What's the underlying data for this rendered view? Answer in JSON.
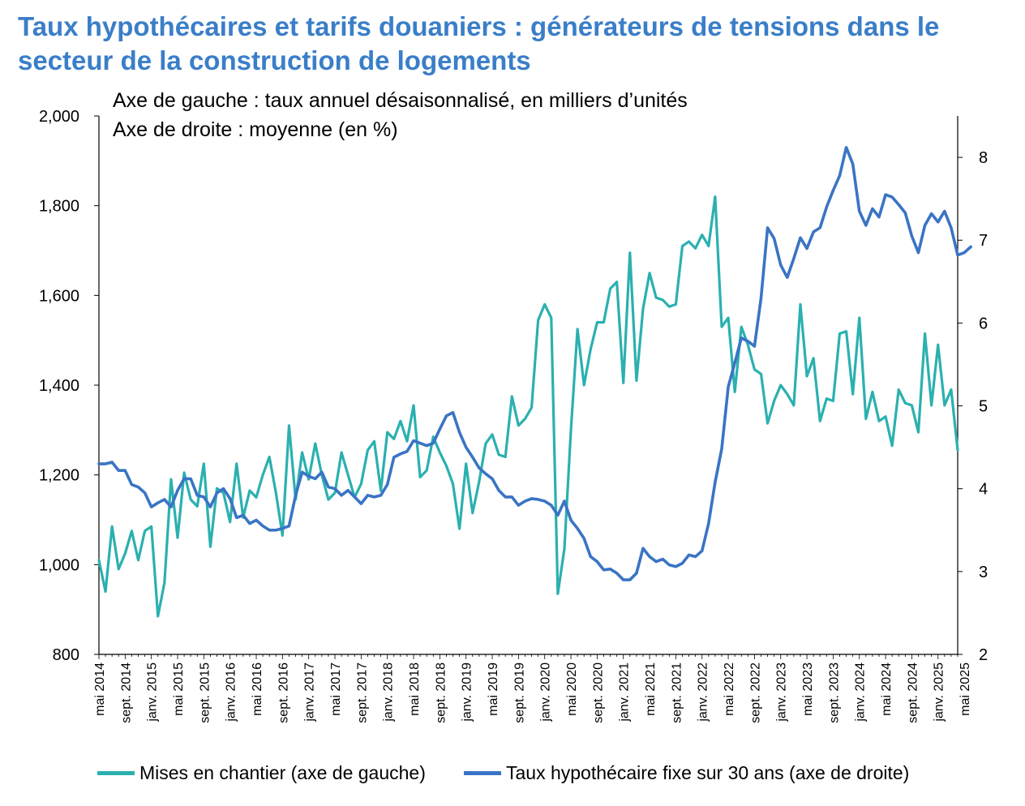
{
  "title": "Taux hypothécaires et tarifs douaniers : générateurs de tensions dans le secteur de la construction de logements",
  "notes": {
    "left_axis": "Axe de gauche : taux annuel désaisonnalisé, en milliers d’unités",
    "right_axis": "Axe de droite : moyenne (en %)"
  },
  "legend": {
    "series1": "Mises en chantier (axe de gauche)",
    "series2": "Taux hypothécaire fixe sur 30 ans (axe de droite)"
  },
  "colors": {
    "title": "#3a7ec8",
    "series1": "#2bb0b0",
    "series2": "#3a74c4",
    "axis": "#000000"
  },
  "chart_data": {
    "type": "line",
    "start": "2014-05",
    "y_left_ticks": [
      "800",
      "1,000",
      "1,200",
      "1,400",
      "1,600",
      "1,800",
      "2,000"
    ],
    "y_left_range": [
      800,
      2000
    ],
    "y_right_ticks": [
      "2",
      "3",
      "4",
      "5",
      "6",
      "7",
      "8"
    ],
    "y_right_range": [
      2,
      8.5
    ],
    "x_ticks": [
      "mai 2014",
      "sept. 2014",
      "janv. 2015",
      "mai 2015",
      "sept. 2015",
      "janv. 2016",
      "mai 2016",
      "sept. 2016",
      "janv. 2017",
      "mai 2017",
      "sept. 2017",
      "janv. 2018",
      "mai 2018",
      "sept. 2018",
      "janv. 2019",
      "mai 2019",
      "sept. 2019",
      "janv. 2020",
      "mai 2020",
      "sept. 2020",
      "janv. 2021",
      "mai 2021",
      "sept. 2021",
      "janv. 2022",
      "mai 2022",
      "sept. 2022",
      "janv. 2023",
      "mai 2023",
      "sept. 2023",
      "janv. 2024",
      "mai 2024",
      "sept. 2024",
      "janv. 2025",
      "mai 2025"
    ],
    "series": [
      {
        "name": "Mises en chantier (axe de gauche)",
        "axis": "left",
        "values": [
          1010,
          940,
          1085,
          990,
          1025,
          1075,
          1010,
          1075,
          1085,
          885,
          960,
          1190,
          1060,
          1205,
          1145,
          1130,
          1225,
          1040,
          1170,
          1160,
          1095,
          1225,
          1105,
          1165,
          1150,
          1200,
          1240,
          1160,
          1065,
          1310,
          1145,
          1250,
          1190,
          1270,
          1200,
          1145,
          1160,
          1250,
          1200,
          1150,
          1180,
          1255,
          1275,
          1165,
          1295,
          1280,
          1320,
          1275,
          1355,
          1195,
          1210,
          1285,
          1250,
          1220,
          1180,
          1080,
          1225,
          1115,
          1185,
          1270,
          1290,
          1245,
          1240,
          1375,
          1310,
          1325,
          1350,
          1545,
          1580,
          1550,
          935,
          1035,
          1300,
          1525,
          1400,
          1480,
          1540,
          1540,
          1615,
          1630,
          1405,
          1695,
          1410,
          1570,
          1650,
          1595,
          1590,
          1575,
          1580,
          1710,
          1720,
          1705,
          1735,
          1710,
          1820,
          1530,
          1550,
          1385,
          1530,
          1490,
          1435,
          1425,
          1315,
          1365,
          1400,
          1380,
          1355,
          1580,
          1420,
          1460,
          1320,
          1370,
          1365,
          1515,
          1520,
          1380,
          1550,
          1325,
          1385,
          1320,
          1330,
          1265,
          1390,
          1360,
          1355,
          1295,
          1515,
          1355,
          1490,
          1355,
          1390,
          1255
        ]
      },
      {
        "name": "Taux hypothécaire fixe sur 30 ans (axe de droite)",
        "axis": "right",
        "values": [
          4.3,
          4.3,
          4.32,
          4.22,
          4.22,
          4.05,
          4.02,
          3.95,
          3.78,
          3.83,
          3.87,
          3.78,
          3.98,
          4.12,
          4.12,
          3.92,
          3.9,
          3.78,
          3.95,
          4.0,
          3.88,
          3.65,
          3.68,
          3.58,
          3.62,
          3.55,
          3.5,
          3.5,
          3.52,
          3.55,
          3.92,
          4.2,
          4.15,
          4.12,
          4.2,
          4.02,
          4.0,
          3.92,
          3.98,
          3.9,
          3.82,
          3.92,
          3.9,
          3.92,
          4.05,
          4.38,
          4.42,
          4.45,
          4.58,
          4.55,
          4.52,
          4.55,
          4.72,
          4.88,
          4.92,
          4.68,
          4.5,
          4.38,
          4.25,
          4.18,
          4.12,
          3.98,
          3.9,
          3.9,
          3.8,
          3.85,
          3.88,
          3.87,
          3.85,
          3.8,
          3.68,
          3.85,
          3.62,
          3.52,
          3.4,
          3.18,
          3.12,
          3.02,
          3.03,
          2.98,
          2.9,
          2.9,
          2.98,
          3.28,
          3.18,
          3.12,
          3.15,
          3.08,
          3.06,
          3.1,
          3.2,
          3.18,
          3.25,
          3.58,
          4.08,
          4.48,
          5.23,
          5.52,
          5.82,
          5.78,
          5.72,
          6.3,
          7.15,
          7.02,
          6.7,
          6.55,
          6.78,
          7.03,
          6.9,
          7.1,
          7.15,
          7.4,
          7.6,
          7.78,
          8.12,
          7.92,
          7.35,
          7.18,
          7.38,
          7.28,
          7.55,
          7.52,
          7.43,
          7.33,
          7.05,
          6.85,
          7.18,
          7.32,
          7.22,
          7.35,
          7.15,
          6.82,
          6.85,
          6.92
        ]
      }
    ]
  }
}
